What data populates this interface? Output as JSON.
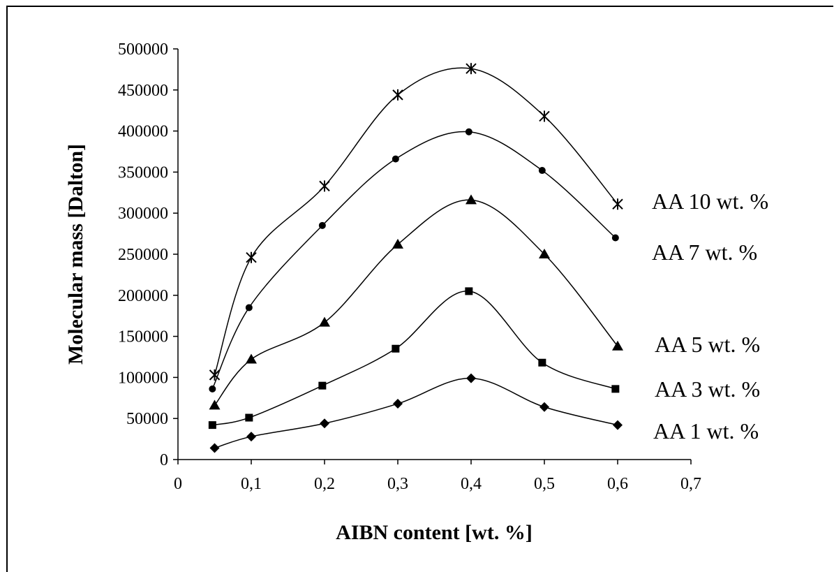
{
  "chart_data": {
    "type": "line",
    "title": "",
    "xlabel": "AIBN content [wt. %]",
    "ylabel": "Molecular mass [Dalton]",
    "xlim": [
      0,
      0.7
    ],
    "ylim": [
      0,
      500000
    ],
    "x_ticks": [
      "0",
      "0,1",
      "0,2",
      "0,3",
      "0,4",
      "0,5",
      "0,6",
      "0,7"
    ],
    "y_ticks": [
      "0",
      "50000",
      "100000",
      "150000",
      "200000",
      "250000",
      "300000",
      "350000",
      "400000",
      "450000",
      "500000"
    ],
    "grid": false,
    "legend": "labels at right end of each series",
    "series": [
      {
        "name": "AA 1 wt. %",
        "marker": "diamond",
        "x": [
          0.05,
          0.1,
          0.2,
          0.3,
          0.4,
          0.5,
          0.6
        ],
        "y": [
          14000,
          28000,
          44000,
          68000,
          99000,
          64000,
          42000
        ]
      },
      {
        "name": "AA 3 wt. %",
        "marker": "square",
        "x": [
          0.047,
          0.097,
          0.197,
          0.297,
          0.397,
          0.497,
          0.597
        ],
        "y": [
          42000,
          51000,
          90000,
          135000,
          205000,
          118000,
          86000
        ]
      },
      {
        "name": "AA 5 wt. %",
        "marker": "triangle",
        "x": [
          0.05,
          0.1,
          0.2,
          0.3,
          0.4,
          0.5,
          0.6
        ],
        "y": [
          66000,
          122000,
          167000,
          262000,
          316000,
          250000,
          138000
        ]
      },
      {
        "name": "AA 7 wt. %",
        "marker": "circle",
        "x": [
          0.047,
          0.097,
          0.197,
          0.297,
          0.397,
          0.497,
          0.597
        ],
        "y": [
          86000,
          185000,
          285000,
          366000,
          399000,
          352000,
          270000
        ]
      },
      {
        "name": "AA 10 wt. %",
        "marker": "asterisk",
        "x": [
          0.05,
          0.1,
          0.2,
          0.3,
          0.4,
          0.5,
          0.6
        ],
        "y": [
          103000,
          246000,
          333000,
          444000,
          476000,
          418000,
          311000
        ]
      }
    ]
  }
}
